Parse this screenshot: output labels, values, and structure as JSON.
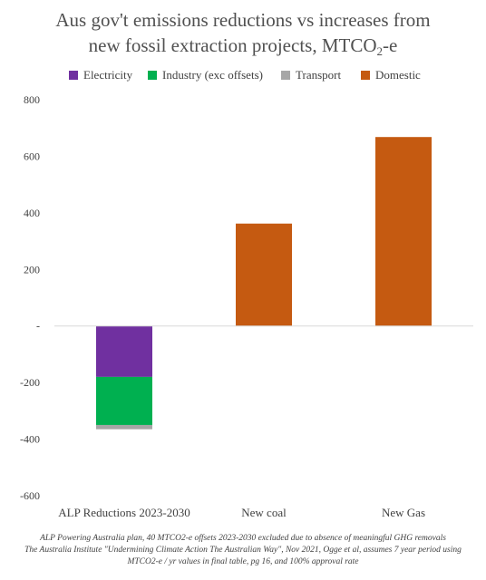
{
  "title": {
    "line1": "Aus gov't emissions reductions vs increases from",
    "line2_prefix": "new fossil extraction projects, MTCO",
    "line2_sub": "2",
    "line2_suffix": "-e"
  },
  "chart_data": {
    "type": "bar",
    "stacked": true,
    "categories": [
      "ALP Reductions 2023-2030",
      "New coal",
      "New Gas"
    ],
    "series": [
      {
        "name": "Electricity",
        "color": "#7030a0",
        "values": [
          -180,
          0,
          0
        ]
      },
      {
        "name": "Industry (exc offsets)",
        "color": "#00b050",
        "values": [
          -170,
          0,
          0
        ]
      },
      {
        "name": "Transport",
        "color": "#a6a6a6",
        "values": [
          -15,
          0,
          0
        ]
      },
      {
        "name": "Domestic",
        "color": "#c55a11",
        "values": [
          0,
          362,
          668
        ]
      }
    ],
    "ylim": [
      -600,
      800
    ],
    "yticks": [
      800,
      600,
      400,
      200,
      0,
      -200,
      -400,
      -600
    ],
    "ytick_labels": [
      "800",
      "600",
      "400",
      "200",
      "-",
      "-200",
      "-400",
      "-600"
    ],
    "legend_position": "top",
    "grid": false
  },
  "footnote": {
    "line1": "ALP Powering Australia plan, 40 MTCO2-e offsets 2023-2030 excluded due to absence of meaningful GHG removals",
    "line2": "The Australia Institute \"Undermining Climate Action The Australian Way\", Nov 2021, Ogge et al, assumes 7 year period using",
    "line3": "MTCO2-e / yr values in final table, pg 16, and 100% approval rate"
  }
}
